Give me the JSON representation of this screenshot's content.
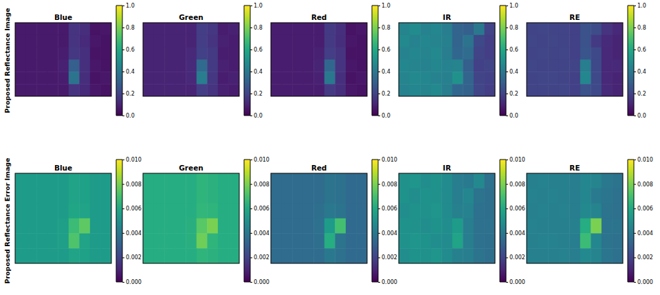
{
  "chart_data": [
    {
      "type": "heatmap",
      "title": "Blue",
      "ylabel": "Proposed Reflectance Image",
      "tick_labels": false,
      "zlim": [
        0,
        1
      ],
      "zticks": [
        {
          "value": 0,
          "label": "0.0"
        },
        {
          "value": 0.2,
          "label": "0.2"
        },
        {
          "value": 0.4,
          "label": "0.4"
        },
        {
          "value": 0.6,
          "label": "0.6"
        },
        {
          "value": 0.8,
          "label": "0.8"
        },
        {
          "value": 1,
          "label": "1.0"
        }
      ],
      "cells": [
        [
          0.07,
          0.07,
          0.07,
          0.07,
          0.07,
          0.15,
          0.13,
          0.05,
          0.06
        ],
        [
          0.07,
          0.07,
          0.07,
          0.07,
          0.07,
          0.15,
          0.12,
          0.06,
          0.05
        ],
        [
          0.07,
          0.07,
          0.07,
          0.07,
          0.08,
          0.16,
          0.14,
          0.05,
          0.05
        ],
        [
          0.07,
          0.07,
          0.07,
          0.07,
          0.09,
          0.3,
          0.14,
          0.06,
          0.05
        ],
        [
          0.07,
          0.07,
          0.07,
          0.07,
          0.08,
          0.38,
          0.13,
          0.05,
          0.06
        ],
        [
          0.07,
          0.07,
          0.07,
          0.07,
          0.07,
          0.15,
          0.12,
          0.06,
          0.05
        ]
      ]
    },
    {
      "type": "heatmap",
      "title": "Green",
      "tick_labels": false,
      "zlim": [
        0,
        1
      ],
      "zticks": [
        {
          "value": 0,
          "label": "0.0"
        },
        {
          "value": 0.2,
          "label": "0.2"
        },
        {
          "value": 0.4,
          "label": "0.4"
        },
        {
          "value": 0.6,
          "label": "0.6"
        },
        {
          "value": 0.8,
          "label": "0.8"
        },
        {
          "value": 1,
          "label": "1.0"
        }
      ],
      "cells": [
        [
          0.1,
          0.1,
          0.1,
          0.1,
          0.1,
          0.18,
          0.16,
          0.08,
          0.09
        ],
        [
          0.1,
          0.1,
          0.1,
          0.1,
          0.1,
          0.18,
          0.15,
          0.09,
          0.08
        ],
        [
          0.1,
          0.1,
          0.1,
          0.1,
          0.11,
          0.19,
          0.17,
          0.08,
          0.08
        ],
        [
          0.1,
          0.1,
          0.1,
          0.1,
          0.12,
          0.34,
          0.17,
          0.09,
          0.08
        ],
        [
          0.1,
          0.1,
          0.1,
          0.1,
          0.11,
          0.42,
          0.16,
          0.08,
          0.09
        ],
        [
          0.1,
          0.1,
          0.1,
          0.1,
          0.1,
          0.18,
          0.15,
          0.09,
          0.08
        ]
      ]
    },
    {
      "type": "heatmap",
      "title": "Red",
      "tick_labels": false,
      "zlim": [
        0,
        1
      ],
      "zticks": [
        {
          "value": 0,
          "label": "0.0"
        },
        {
          "value": 0.2,
          "label": "0.2"
        },
        {
          "value": 0.4,
          "label": "0.4"
        },
        {
          "value": 0.6,
          "label": "0.6"
        },
        {
          "value": 0.8,
          "label": "0.8"
        },
        {
          "value": 1,
          "label": "1.0"
        }
      ],
      "cells": [
        [
          0.08,
          0.08,
          0.08,
          0.08,
          0.08,
          0.17,
          0.14,
          0.05,
          0.06
        ],
        [
          0.08,
          0.08,
          0.08,
          0.08,
          0.08,
          0.17,
          0.13,
          0.06,
          0.05
        ],
        [
          0.08,
          0.08,
          0.08,
          0.08,
          0.09,
          0.18,
          0.15,
          0.05,
          0.05
        ],
        [
          0.08,
          0.08,
          0.08,
          0.08,
          0.1,
          0.33,
          0.15,
          0.06,
          0.05
        ],
        [
          0.08,
          0.08,
          0.08,
          0.08,
          0.09,
          0.4,
          0.14,
          0.05,
          0.06
        ],
        [
          0.08,
          0.08,
          0.08,
          0.08,
          0.08,
          0.17,
          0.13,
          0.06,
          0.05
        ]
      ]
    },
    {
      "type": "heatmap",
      "title": "IR",
      "tick_labels": false,
      "zlim": [
        0,
        1
      ],
      "zticks": [
        {
          "value": 0,
          "label": "0.0"
        },
        {
          "value": 0.2,
          "label": "0.2"
        },
        {
          "value": 0.4,
          "label": "0.4"
        },
        {
          "value": 0.6,
          "label": "0.6"
        },
        {
          "value": 0.8,
          "label": "0.8"
        },
        {
          "value": 1,
          "label": "1.0"
        }
      ],
      "cells": [
        [
          0.45,
          0.48,
          0.44,
          0.46,
          0.42,
          0.32,
          0.3,
          0.4,
          0.2
        ],
        [
          0.47,
          0.44,
          0.46,
          0.45,
          0.43,
          0.32,
          0.38,
          0.22,
          0.18
        ],
        [
          0.44,
          0.46,
          0.45,
          0.47,
          0.42,
          0.33,
          0.35,
          0.2,
          0.18
        ],
        [
          0.46,
          0.45,
          0.44,
          0.46,
          0.44,
          0.45,
          0.3,
          0.19,
          0.2
        ],
        [
          0.45,
          0.47,
          0.46,
          0.44,
          0.43,
          0.5,
          0.32,
          0.2,
          0.19
        ],
        [
          0.44,
          0.46,
          0.45,
          0.47,
          0.42,
          0.33,
          0.31,
          0.21,
          0.18
        ]
      ]
    },
    {
      "type": "heatmap",
      "title": "RE",
      "tick_labels": false,
      "zlim": [
        0,
        1
      ],
      "zticks": [
        {
          "value": 0,
          "label": "0.0"
        },
        {
          "value": 0.2,
          "label": "0.2"
        },
        {
          "value": 0.4,
          "label": "0.4"
        },
        {
          "value": 0.6,
          "label": "0.6"
        },
        {
          "value": 0.8,
          "label": "0.8"
        },
        {
          "value": 1,
          "label": "1.0"
        }
      ],
      "cells": [
        [
          0.2,
          0.21,
          0.2,
          0.2,
          0.19,
          0.25,
          0.23,
          0.15,
          0.11
        ],
        [
          0.21,
          0.2,
          0.21,
          0.2,
          0.19,
          0.25,
          0.17,
          0.12,
          0.1
        ],
        [
          0.2,
          0.21,
          0.2,
          0.21,
          0.19,
          0.26,
          0.22,
          0.11,
          0.1
        ],
        [
          0.21,
          0.2,
          0.2,
          0.2,
          0.2,
          0.42,
          0.22,
          0.11,
          0.11
        ],
        [
          0.2,
          0.21,
          0.21,
          0.2,
          0.19,
          0.46,
          0.22,
          0.11,
          0.1
        ],
        [
          0.2,
          0.2,
          0.2,
          0.21,
          0.19,
          0.25,
          0.22,
          0.12,
          0.1
        ]
      ]
    },
    {
      "type": "heatmap",
      "title": "Blue",
      "ylabel": "Proposed Reflectance Error Image",
      "tick_labels": false,
      "zlim": [
        0,
        0.01
      ],
      "zticks": [
        {
          "value": 0,
          "label": "0.000"
        },
        {
          "value": 0.002,
          "label": "0.002"
        },
        {
          "value": 0.004,
          "label": "0.004"
        },
        {
          "value": 0.006,
          "label": "0.006"
        },
        {
          "value": 0.008,
          "label": "0.008"
        },
        {
          "value": 0.01,
          "label": "0.010"
        }
      ],
      "cells": [
        [
          0.0055,
          0.0055,
          0.0055,
          0.0055,
          0.0055,
          0.0058,
          0.0057,
          0.0055,
          0.0055
        ],
        [
          0.0055,
          0.0055,
          0.0055,
          0.0055,
          0.0055,
          0.0058,
          0.0057,
          0.0055,
          0.0055
        ],
        [
          0.0055,
          0.0055,
          0.0055,
          0.0055,
          0.0055,
          0.0059,
          0.0058,
          0.0055,
          0.0055
        ],
        [
          0.0055,
          0.0055,
          0.0055,
          0.0055,
          0.0056,
          0.0068,
          0.0075,
          0.0055,
          0.0055
        ],
        [
          0.0055,
          0.0055,
          0.0055,
          0.0055,
          0.0056,
          0.0072,
          0.0058,
          0.0055,
          0.0055
        ],
        [
          0.0055,
          0.0055,
          0.0055,
          0.0055,
          0.0055,
          0.0058,
          0.0057,
          0.0055,
          0.0055
        ]
      ]
    },
    {
      "type": "heatmap",
      "title": "Green",
      "tick_labels": false,
      "zlim": [
        0,
        0.01
      ],
      "zticks": [
        {
          "value": 0,
          "label": "0.000"
        },
        {
          "value": 0.002,
          "label": "0.002"
        },
        {
          "value": 0.004,
          "label": "0.004"
        },
        {
          "value": 0.006,
          "label": "0.006"
        },
        {
          "value": 0.008,
          "label": "0.008"
        },
        {
          "value": 0.01,
          "label": "0.010"
        }
      ],
      "cells": [
        [
          0.0062,
          0.0062,
          0.0062,
          0.0062,
          0.0062,
          0.0065,
          0.0064,
          0.0062,
          0.0062
        ],
        [
          0.0062,
          0.0062,
          0.0062,
          0.0062,
          0.0062,
          0.0065,
          0.0064,
          0.0062,
          0.0062
        ],
        [
          0.0062,
          0.0062,
          0.0062,
          0.0062,
          0.0062,
          0.0066,
          0.0065,
          0.0062,
          0.0062
        ],
        [
          0.0062,
          0.0062,
          0.0062,
          0.0062,
          0.0063,
          0.0074,
          0.008,
          0.0062,
          0.0062
        ],
        [
          0.0062,
          0.0062,
          0.0062,
          0.0062,
          0.0063,
          0.0078,
          0.0065,
          0.0062,
          0.0062
        ],
        [
          0.0062,
          0.0062,
          0.0062,
          0.0062,
          0.0062,
          0.0065,
          0.0064,
          0.0062,
          0.0062
        ]
      ]
    },
    {
      "type": "heatmap",
      "title": "Red",
      "tick_labels": false,
      "zlim": [
        0,
        0.01
      ],
      "zticks": [
        {
          "value": 0,
          "label": "0.000"
        },
        {
          "value": 0.002,
          "label": "0.002"
        },
        {
          "value": 0.004,
          "label": "0.004"
        },
        {
          "value": 0.006,
          "label": "0.006"
        },
        {
          "value": 0.008,
          "label": "0.008"
        },
        {
          "value": 0.01,
          "label": "0.010"
        }
      ],
      "cells": [
        [
          0.0035,
          0.0035,
          0.0035,
          0.0035,
          0.0035,
          0.0038,
          0.0037,
          0.0034,
          0.0034
        ],
        [
          0.0035,
          0.0035,
          0.0035,
          0.0035,
          0.0035,
          0.0038,
          0.0037,
          0.0034,
          0.0034
        ],
        [
          0.0035,
          0.0035,
          0.0035,
          0.0035,
          0.0036,
          0.004,
          0.0038,
          0.0034,
          0.0034
        ],
        [
          0.0035,
          0.0035,
          0.0035,
          0.0035,
          0.0037,
          0.0055,
          0.007,
          0.0034,
          0.0034
        ],
        [
          0.0035,
          0.0035,
          0.0035,
          0.0035,
          0.0036,
          0.0062,
          0.0038,
          0.0034,
          0.0034
        ],
        [
          0.0035,
          0.0035,
          0.0035,
          0.0035,
          0.0035,
          0.004,
          0.0037,
          0.0034,
          0.0034
        ]
      ]
    },
    {
      "type": "heatmap",
      "title": "IR",
      "tick_labels": false,
      "zlim": [
        0,
        0.01
      ],
      "zticks": [
        {
          "value": 0,
          "label": "0.000"
        },
        {
          "value": 0.002,
          "label": "0.002"
        },
        {
          "value": 0.004,
          "label": "0.004"
        },
        {
          "value": 0.006,
          "label": "0.006"
        },
        {
          "value": 0.008,
          "label": "0.008"
        },
        {
          "value": 0.01,
          "label": "0.010"
        }
      ],
      "cells": [
        [
          0.005,
          0.0052,
          0.0049,
          0.0051,
          0.0048,
          0.0042,
          0.0041,
          0.0047,
          0.0037
        ],
        [
          0.0051,
          0.0049,
          0.0051,
          0.005,
          0.0048,
          0.0042,
          0.0046,
          0.0038,
          0.0036
        ],
        [
          0.0049,
          0.0051,
          0.005,
          0.0052,
          0.0048,
          0.0043,
          0.0044,
          0.0037,
          0.0036
        ],
        [
          0.0051,
          0.005,
          0.0049,
          0.0051,
          0.0049,
          0.0055,
          0.0042,
          0.0037,
          0.0037
        ],
        [
          0.005,
          0.0052,
          0.0051,
          0.0049,
          0.0048,
          0.0058,
          0.0042,
          0.0037,
          0.0036
        ],
        [
          0.0049,
          0.0051,
          0.005,
          0.0052,
          0.0048,
          0.0043,
          0.0042,
          0.0038,
          0.0036
        ]
      ]
    },
    {
      "type": "heatmap",
      "title": "RE",
      "tick_labels": false,
      "zlim": [
        0,
        0.01
      ],
      "zticks": [
        {
          "value": 0,
          "label": "0.000"
        },
        {
          "value": 0.002,
          "label": "0.002"
        },
        {
          "value": 0.004,
          "label": "0.004"
        },
        {
          "value": 0.006,
          "label": "0.006"
        },
        {
          "value": 0.008,
          "label": "0.008"
        },
        {
          "value": 0.01,
          "label": "0.010"
        }
      ],
      "cells": [
        [
          0.0043,
          0.0044,
          0.0043,
          0.0043,
          0.0042,
          0.0046,
          0.0045,
          0.004,
          0.0038
        ],
        [
          0.0044,
          0.0043,
          0.0044,
          0.0043,
          0.0042,
          0.0046,
          0.0041,
          0.0039,
          0.0037
        ],
        [
          0.0043,
          0.0044,
          0.0043,
          0.0044,
          0.0042,
          0.0047,
          0.0045,
          0.0038,
          0.0037
        ],
        [
          0.0044,
          0.0043,
          0.0043,
          0.0043,
          0.0043,
          0.0062,
          0.008,
          0.0038,
          0.0038
        ],
        [
          0.0043,
          0.0044,
          0.0044,
          0.0043,
          0.0042,
          0.0068,
          0.0046,
          0.0038,
          0.0037
        ],
        [
          0.0043,
          0.0043,
          0.0043,
          0.0044,
          0.0042,
          0.0047,
          0.0045,
          0.0039,
          0.0037
        ]
      ]
    }
  ]
}
